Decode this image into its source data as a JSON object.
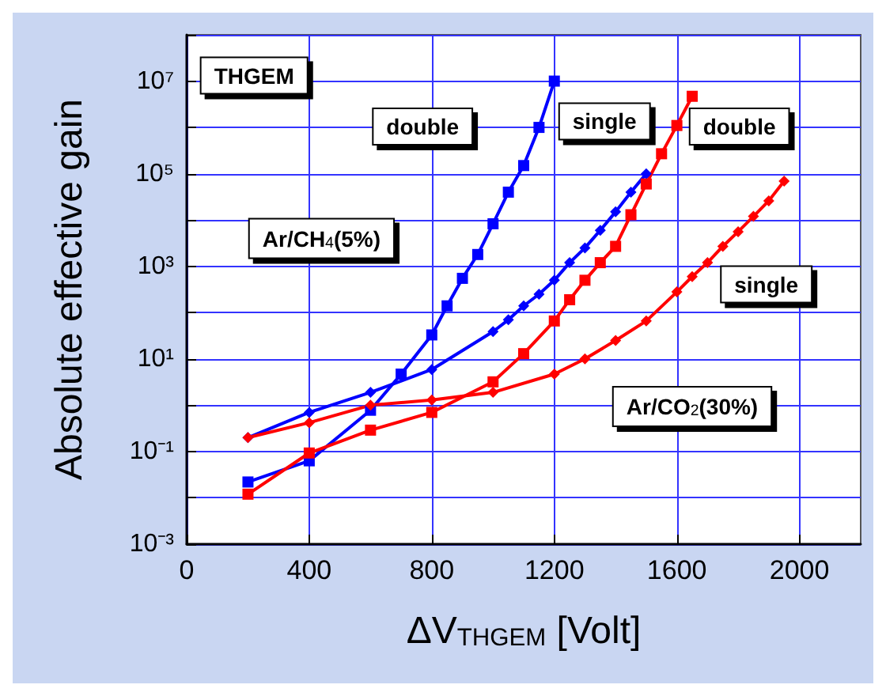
{
  "chart_data": {
    "type": "line",
    "xlabel": "ΔV$_{THGEM}$ [Volt]",
    "ylabel": "Absolute effective gain",
    "log": "y",
    "grid": true,
    "line_style": "solid",
    "xlim": [
      0,
      2200
    ],
    "xticks": [
      0,
      400,
      800,
      1200,
      1600,
      2000
    ],
    "ylim": [
      0.001,
      100000000
    ],
    "yticks": [
      {
        "value": 0.001,
        "label": "10⁻³"
      },
      {
        "value": 0.01,
        "label": null
      },
      {
        "value": 0.1,
        "label": "10⁻¹"
      },
      {
        "value": 1,
        "label": null
      },
      {
        "value": 10,
        "label": "10¹"
      },
      {
        "value": 100,
        "label": null
      },
      {
        "value": 1000,
        "label": "10³"
      },
      {
        "value": 10000,
        "label": null
      },
      {
        "value": 100000,
        "label": "10⁵"
      },
      {
        "value": 1000000,
        "label": null
      },
      {
        "value": 10000000,
        "label": "10⁷"
      },
      {
        "value": 100000000,
        "label": null
      }
    ],
    "series": [
      {
        "color": "#0000ff",
        "marker": "square",
        "x": [
          200,
          400,
          600,
          700,
          800,
          850,
          900,
          950,
          1000,
          1050,
          1100,
          1150,
          1200
        ],
        "values": [
          0.022,
          0.063,
          0.78,
          4.7,
          33,
          140,
          550,
          1800,
          8300,
          40000,
          150000,
          1000000,
          10000000
        ]
      },
      {
        "color": "#0000ff",
        "marker": "diamond",
        "x": [
          200,
          400,
          600,
          800,
          1000,
          1050,
          1100,
          1150,
          1200,
          1250,
          1300,
          1350,
          1400,
          1450,
          1500
        ],
        "values": [
          0.2,
          0.7,
          1.9,
          5.9,
          39,
          70,
          140,
          250,
          500,
          1200,
          2500,
          6000,
          15000,
          40000,
          100000
        ]
      },
      {
        "color": "#ff0000",
        "marker": "square",
        "x": [
          200,
          400,
          600,
          800,
          1000,
          1100,
          1200,
          1250,
          1300,
          1350,
          1400,
          1450,
          1500,
          1550,
          1600,
          1650
        ],
        "values": [
          0.012,
          0.093,
          0.29,
          0.7,
          3.2,
          13,
          66,
          190,
          500,
          1200,
          2700,
          13000,
          60000,
          270000,
          1100000,
          4700000
        ]
      },
      {
        "color": "#ff0000",
        "marker": "diamond",
        "x": [
          200,
          400,
          600,
          800,
          1000,
          1200,
          1300,
          1400,
          1500,
          1600,
          1650,
          1700,
          1750,
          1800,
          1850,
          1900,
          1950
        ],
        "values": [
          0.2,
          0.42,
          1,
          1.3,
          1.9,
          4.7,
          10,
          25,
          66,
          280,
          600,
          1200,
          2700,
          5600,
          12000,
          26000,
          69000
        ]
      }
    ],
    "annotations": [
      "THGEM",
      "double",
      "single",
      "double",
      "single",
      "Ar/CH$_{4}$(5%)",
      "Ar/CO$_{2}$(30%)"
    ]
  }
}
